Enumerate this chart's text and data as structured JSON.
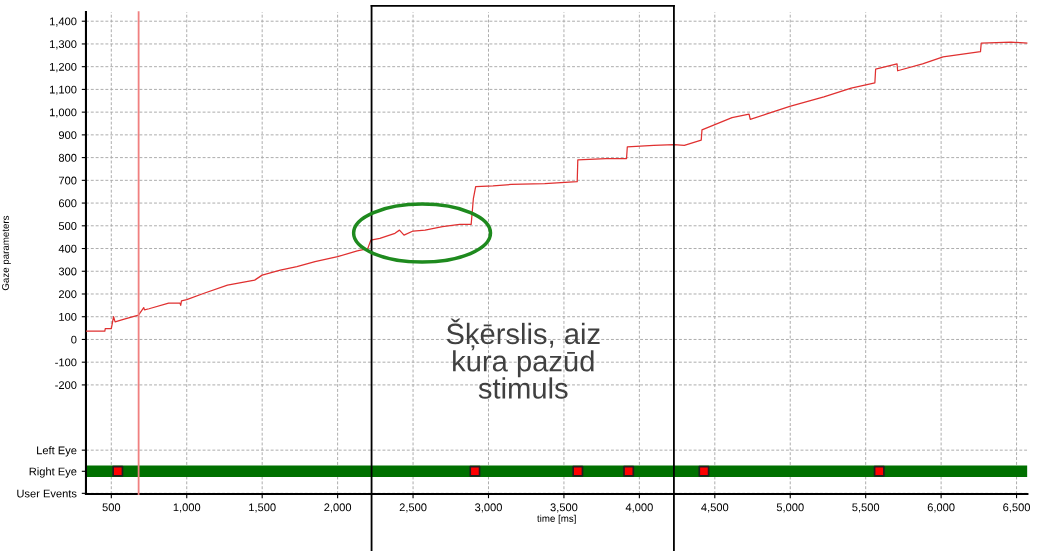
{
  "chart_data": {
    "type": "line",
    "xlabel": "time [ms]",
    "ylabel": "Gaze parameters",
    "xlim": [
      332,
      6572
    ],
    "ylim": [
      -680,
      1440
    ],
    "xticks": [
      500,
      {
        "value": 1000,
        "label": "1,000"
      },
      {
        "value": 1500,
        "label": "1,500"
      },
      {
        "value": 2000,
        "label": "2,000"
      },
      {
        "value": 2500,
        "label": "2,500"
      },
      {
        "value": 3000,
        "label": "3,000"
      },
      {
        "value": 3500,
        "label": "3,500"
      },
      {
        "value": 4000,
        "label": "4,000"
      },
      {
        "value": 4500,
        "label": "4,500"
      },
      {
        "value": 5000,
        "label": "5,000"
      },
      {
        "value": 5500,
        "label": "5,500"
      },
      {
        "value": 6000,
        "label": "6,000"
      },
      {
        "value": 6500,
        "label": "6,500"
      }
    ],
    "yticks": [
      {
        "value": -677,
        "label": "User Events"
      },
      {
        "value": -580,
        "label": "Right Eye"
      },
      {
        "value": -487,
        "label": "Left Eye"
      },
      -200,
      -100,
      0,
      100,
      200,
      300,
      400,
      500,
      600,
      700,
      800,
      900,
      {
        "value": 1000,
        "label": "1,000"
      },
      {
        "value": 1100,
        "label": "1,100"
      },
      {
        "value": 1200,
        "label": "1,200"
      },
      {
        "value": 1300,
        "label": "1,300"
      },
      {
        "value": 1400,
        "label": "1,400"
      }
    ],
    "grid": true,
    "legend": false,
    "series": [
      {
        "color": "#e03030",
        "x": [
          332,
          457,
          460,
          500,
          515,
          525,
          580,
          680,
          715,
          720,
          750,
          880,
          955,
          960,
          965,
          1000,
          1110,
          1270,
          1450,
          1500,
          1620,
          1730,
          1850,
          2000,
          2130,
          2200,
          2220,
          2280,
          2380,
          2410,
          2440,
          2500,
          2580,
          2695,
          2810,
          2885,
          2900,
          2915,
          3030,
          3150,
          3373,
          3588,
          3592,
          3779,
          3915,
          3920,
          4095,
          4229,
          4298,
          4410,
          4415,
          4614,
          4727,
          4735,
          4840,
          4997,
          5223,
          5404,
          5561,
          5566,
          5708,
          5712,
          5877,
          6013,
          6261,
          6266,
          6464,
          6572
        ],
        "values": [
          37,
          37,
          48,
          48,
          100,
          77,
          88,
          107,
          140,
          130,
          135,
          160,
          160,
          150,
          170,
          175,
          202,
          239,
          261,
          283,
          305,
          320,
          342,
          364,
          390,
          400,
          437,
          445,
          467,
          481,
          459,
          477,
          481,
          496,
          506,
          506,
          621,
          672,
          676,
          682,
          686,
          694,
          790,
          796,
          796,
          847,
          854,
          857,
          854,
          877,
          922,
          976,
          991,
          968,
          991,
          1025,
          1067,
          1106,
          1129,
          1189,
          1212,
          1182,
          1212,
          1243,
          1266,
          1304,
          1308,
          1304
        ]
      },
      {
        "type": "scatter",
        "color": "#ff0000",
        "marker": "square",
        "x": [
          543,
          2910,
          3592,
          3929,
          4428,
          5590
        ],
        "values": [
          -580,
          -580,
          -580,
          -580,
          -580,
          -580
        ]
      }
    ],
    "ref_lines": [
      {
        "axis": "x",
        "value": 681,
        "label": null,
        "color": "#f08080"
      },
      {
        "axis": "x",
        "value": 2225,
        "label": null,
        "color": "#000000"
      },
      {
        "axis": "x",
        "value": 4229,
        "label": null,
        "color": "#000000"
      }
    ],
    "bands": [
      {
        "axis": "y",
        "from": -605,
        "to": -555,
        "label": null,
        "color": "#007000"
      }
    ],
    "annotations": [
      "Šķērslis, aiz\nkura pazūd\nstimuls"
    ]
  }
}
